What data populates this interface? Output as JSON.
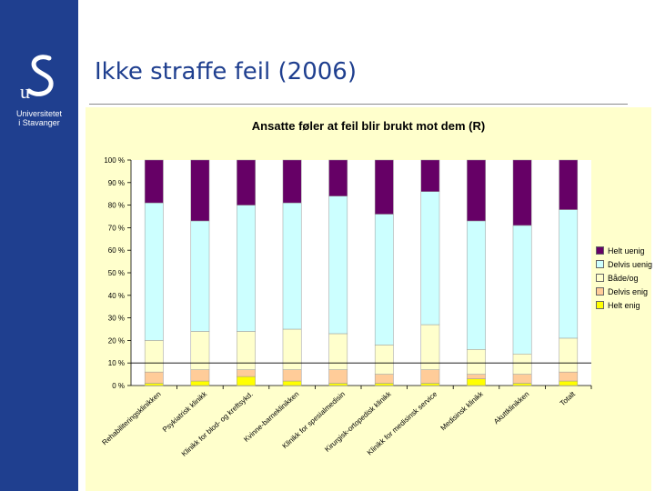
{
  "sidebar": {
    "logo_icon": "uis-logo",
    "university_line1": "Universitetet",
    "university_line2": "i Stavanger",
    "background_color": "#1f3f8f"
  },
  "slide": {
    "title": "Ikke straffe feil (2006)"
  },
  "chart_data": {
    "type": "bar",
    "stacked": true,
    "title": "Ansatte føler at feil blir brukt mot dem (R)",
    "xlabel": "",
    "ylabel": "",
    "ylim": [
      0,
      100
    ],
    "ytick_labels": [
      "0 %",
      "10 %",
      "20 %",
      "30 %",
      "40 %",
      "50 %",
      "60 %",
      "70 %",
      "80 %",
      "90 %",
      "100 %"
    ],
    "grid": false,
    "legend_position": "right",
    "categories": [
      "Rehabiliteringsklinikken",
      "Psykiatrisk klinikk",
      "Klinikk for blod- og kreftsykd.",
      "Kvinne-barneklinikken",
      "Klinikk for spesialmedisin",
      "Kirurgisk-ortopedisk klinikk",
      "Klinikk for medisinsk service",
      "Medisinsk klinikk",
      "Akuttklinikken",
      "Totalt"
    ],
    "series": [
      {
        "name": "Helt enig",
        "color": "#ffff00",
        "values": [
          1,
          2,
          4,
          2,
          1,
          1,
          1,
          3,
          1,
          2
        ]
      },
      {
        "name": "Delvis enig",
        "color": "#ffcc99",
        "values": [
          5,
          5,
          3,
          5,
          6,
          4,
          6,
          2,
          4,
          4
        ]
      },
      {
        "name": "Både/og",
        "color": "#ffffcc",
        "values": [
          14,
          17,
          17,
          18,
          16,
          13,
          20,
          11,
          9,
          15
        ]
      },
      {
        "name": "Delvis uenig",
        "color": "#ccffff",
        "values": [
          61,
          49,
          56,
          56,
          61,
          58,
          59,
          57,
          57,
          57
        ]
      },
      {
        "name": "Helt uenig",
        "color": "#660066",
        "values": [
          19,
          27,
          20,
          19,
          16,
          24,
          14,
          27,
          29,
          22
        ]
      }
    ]
  }
}
